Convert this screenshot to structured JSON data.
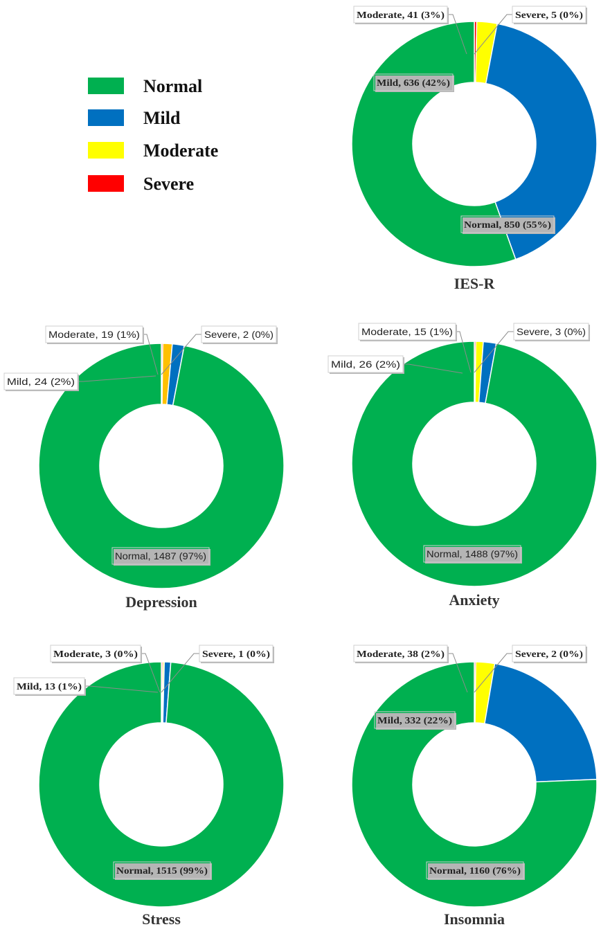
{
  "legend": {
    "items": [
      {
        "label": "Normal",
        "color": "#00B050"
      },
      {
        "label": "Mild",
        "color": "#0070C0"
      },
      {
        "label": "Moderate",
        "color": "#FFFF00"
      },
      {
        "label": "Severe",
        "color": "#FF0000"
      }
    ]
  },
  "chart_data": [
    {
      "type": "pie",
      "title": "IES-R",
      "categories": [
        "Normal",
        "Mild",
        "Moderate",
        "Severe"
      ],
      "values": [
        850,
        636,
        41,
        5
      ],
      "colors": [
        "#00B050",
        "#0070C0",
        "#FFFF00",
        "#FF0000"
      ],
      "data_labels": [
        "Normal, 850 (55%)",
        "Mild, 636 (42%)",
        "Moderate, 41 (3%)",
        "Severe, 5 (0%)"
      ]
    },
    {
      "type": "pie",
      "title": "Depression",
      "categories": [
        "Normal",
        "Mild",
        "Moderate",
        "Severe"
      ],
      "values": [
        1487,
        24,
        19,
        2
      ],
      "colors": [
        "#00B050",
        "#0070C0",
        "#FFC000",
        "#FF0000"
      ],
      "data_labels": [
        "Normal, 1487 (97%)",
        "Mild, 24 (2%)",
        "Moderate, 19 (1%)",
        "Severe, 2 (0%)"
      ]
    },
    {
      "type": "pie",
      "title": "Anxiety",
      "categories": [
        "Normal",
        "Mild",
        "Moderate",
        "Severe"
      ],
      "values": [
        1488,
        26,
        15,
        3
      ],
      "colors": [
        "#00B050",
        "#0070C0",
        "#FFFF00",
        "#FF0000"
      ],
      "data_labels": [
        "Normal, 1488 (97%)",
        "Mild, 26 (2%)",
        "Moderate, 15 (1%)",
        "Severe, 3 (0%)"
      ]
    },
    {
      "type": "pie",
      "title": "Stress",
      "categories": [
        "Normal",
        "Mild",
        "Moderate",
        "Severe"
      ],
      "values": [
        1515,
        13,
        3,
        1
      ],
      "colors": [
        "#00B050",
        "#0070C0",
        "#FFFF00",
        "#FF0000"
      ],
      "data_labels": [
        "Normal, 1515 (99%)",
        "Mild, 13 (1%)",
        "Moderate, 3 (0%)",
        "Severe, 1 (0%)"
      ]
    },
    {
      "type": "pie",
      "title": "Insomnia",
      "categories": [
        "Normal",
        "Mild",
        "Moderate",
        "Severe"
      ],
      "values": [
        1160,
        332,
        38,
        2
      ],
      "colors": [
        "#00B050",
        "#0070C0",
        "#FFFF00",
        "#FF0000"
      ],
      "data_labels": [
        "Normal, 1160 (76%)",
        "Mild, 332 (22%)",
        "Moderate, 38 (2%)",
        "Severe, 2 (0%)"
      ]
    }
  ]
}
